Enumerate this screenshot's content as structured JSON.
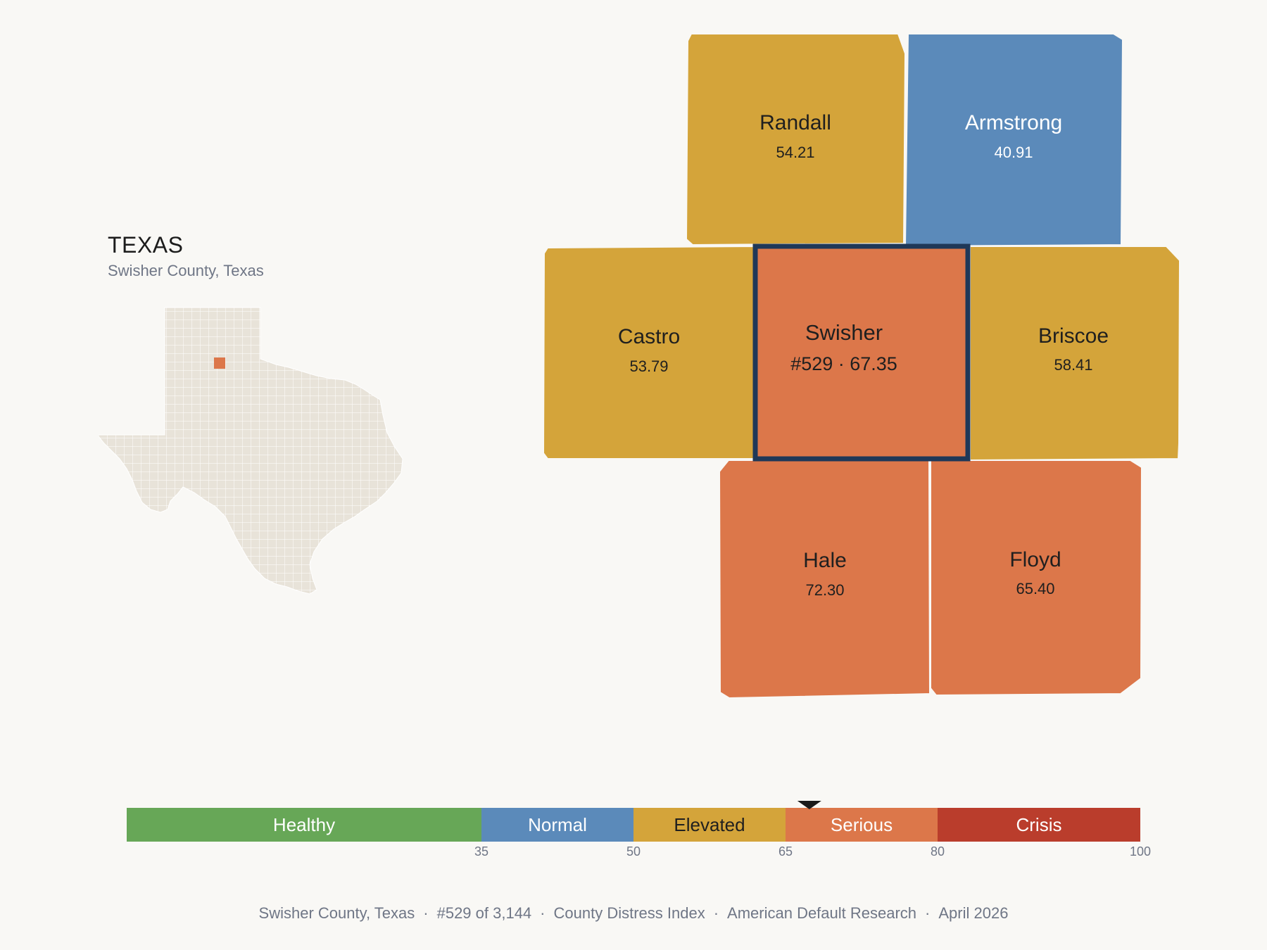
{
  "header": {
    "state_title": "TEXAS",
    "subtitle": "Swisher County, Texas"
  },
  "colors": {
    "background": "#f9f8f5",
    "healthy": "#67a757",
    "normal": "#5b8aba",
    "elevated": "#d4a43a",
    "serious": "#dc774a",
    "crisis": "#ba3d2c",
    "selected_border": "#1f3858",
    "inset_fill": "#e8e3d9"
  },
  "selected_county": {
    "name": "Swisher",
    "label": "#529 · 67.35",
    "rank": "#529",
    "score": 67.35,
    "level": "Serious"
  },
  "neighbors": [
    {
      "id": "randall",
      "name": "Randall",
      "value": "54.21",
      "level": "Elevated"
    },
    {
      "id": "armstrong",
      "name": "Armstrong",
      "value": "40.91",
      "level": "Normal"
    },
    {
      "id": "castro",
      "name": "Castro",
      "value": "53.79",
      "level": "Elevated"
    },
    {
      "id": "briscoe",
      "name": "Briscoe",
      "value": "58.41",
      "level": "Elevated"
    },
    {
      "id": "hale",
      "name": "Hale",
      "value": "72.30",
      "level": "Serious"
    },
    {
      "id": "floyd",
      "name": "Floyd",
      "value": "65.40",
      "level": "Serious"
    }
  ],
  "scale": {
    "segments": [
      {
        "label": "Healthy",
        "from": 0,
        "to": 35
      },
      {
        "label": "Normal",
        "from": 35,
        "to": 50
      },
      {
        "label": "Elevated",
        "from": 50,
        "to": 65
      },
      {
        "label": "Serious",
        "from": 65,
        "to": 80
      },
      {
        "label": "Crisis",
        "from": 80,
        "to": 100
      }
    ],
    "ticks": [
      "35",
      "50",
      "65",
      "80",
      "100"
    ],
    "marker_value": 67.35
  },
  "footer": {
    "county": "Swisher County, Texas",
    "rank": "#529 of 3,144",
    "index": "County Distress Index",
    "org": "American Default Research",
    "date": "April 2026"
  }
}
